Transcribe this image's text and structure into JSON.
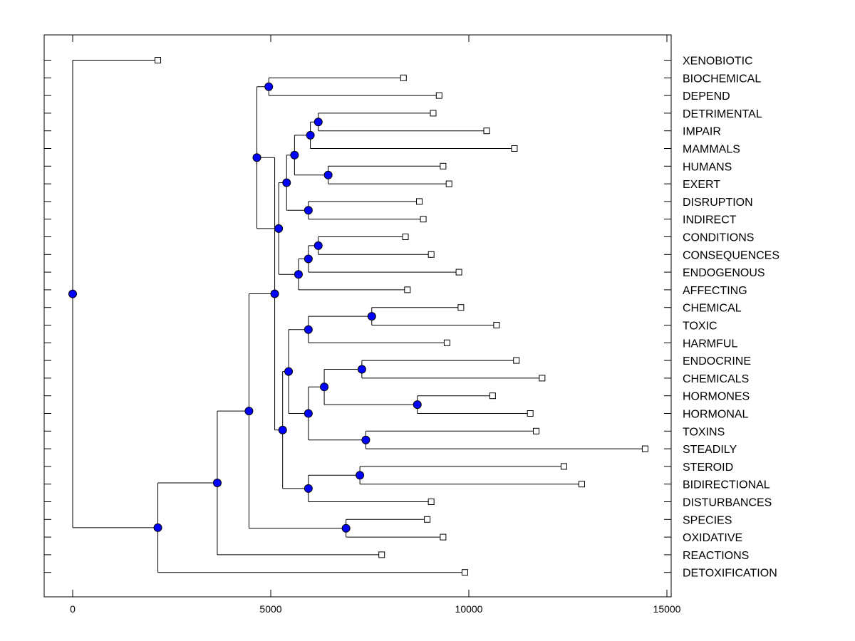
{
  "chart_data": {
    "type": "dendrogram",
    "title": "",
    "xlabel": "",
    "ylabel": "",
    "xlim": [
      -750,
      15100
    ],
    "xticks": [
      0,
      5000,
      10000,
      15000
    ],
    "xtick_labels": [
      "0",
      "5000",
      "10000",
      "15000"
    ],
    "grid": false,
    "colors": {
      "node": "#0000ff",
      "line": "#000000",
      "leaf_fill": "#ffffff"
    },
    "leaves": [
      {
        "label": "XENOBIOTIC",
        "x": 2150
      },
      {
        "label": "BIOCHEMICAL",
        "x": 8350
      },
      {
        "label": "DEPEND",
        "x": 9250
      },
      {
        "label": "DETRIMENTAL",
        "x": 9100
      },
      {
        "label": "IMPAIR",
        "x": 10450
      },
      {
        "label": "MAMMALS",
        "x": 11150
      },
      {
        "label": "HUMANS",
        "x": 9350
      },
      {
        "label": "EXERT",
        "x": 9500
      },
      {
        "label": "DISRUPTION",
        "x": 8750
      },
      {
        "label": "INDIRECT",
        "x": 8850
      },
      {
        "label": "CONDITIONS",
        "x": 8400
      },
      {
        "label": "CONSEQUENCES",
        "x": 9050
      },
      {
        "label": "ENDOGENOUS",
        "x": 9750
      },
      {
        "label": "AFFECTING",
        "x": 8450
      },
      {
        "label": "CHEMICAL",
        "x": 9800
      },
      {
        "label": "TOXIC",
        "x": 10700
      },
      {
        "label": "HARMFUL",
        "x": 9450
      },
      {
        "label": "ENDOCRINE",
        "x": 11200
      },
      {
        "label": "CHEMICALS",
        "x": 11850
      },
      {
        "label": "HORMONES",
        "x": 10600
      },
      {
        "label": "HORMONAL",
        "x": 11550
      },
      {
        "label": "TOXINS",
        "x": 11700
      },
      {
        "label": "STEADILY",
        "x": 14450
      },
      {
        "label": "STEROID",
        "x": 12400
      },
      {
        "label": "BIDIRECTIONAL",
        "x": 12850
      },
      {
        "label": "DISTURBANCES",
        "x": 9050
      },
      {
        "label": "SPECIES",
        "x": 8950
      },
      {
        "label": "OXIDATIVE",
        "x": 9350
      },
      {
        "label": "REACTIONS",
        "x": 7800
      },
      {
        "label": "DETOXIFICATION",
        "x": 9900
      }
    ],
    "merges": [
      {
        "id": "n1",
        "x": 4950,
        "children": [
          "L1",
          "L2"
        ]
      },
      {
        "id": "n2",
        "x": 6200,
        "children": [
          "L3",
          "L4"
        ]
      },
      {
        "id": "n3",
        "x": 6000,
        "children": [
          "n2",
          "L5"
        ]
      },
      {
        "id": "n4",
        "x": 6450,
        "children": [
          "L6",
          "L7"
        ]
      },
      {
        "id": "n5",
        "x": 5600,
        "children": [
          "n3",
          "n4"
        ]
      },
      {
        "id": "n6",
        "x": 5950,
        "children": [
          "L8",
          "L9"
        ]
      },
      {
        "id": "n7",
        "x": 5400,
        "children": [
          "n5",
          "n6"
        ]
      },
      {
        "id": "n8",
        "x": 6200,
        "children": [
          "L10",
          "L11"
        ]
      },
      {
        "id": "n9",
        "x": 5950,
        "children": [
          "n8",
          "L12"
        ]
      },
      {
        "id": "n10",
        "x": 5700,
        "children": [
          "n9",
          "L13"
        ]
      },
      {
        "id": "n11",
        "x": 5200,
        "children": [
          "n7",
          "n10"
        ]
      },
      {
        "id": "n12",
        "x": 4650,
        "children": [
          "n1",
          "n11"
        ]
      },
      {
        "id": "n13",
        "x": 7550,
        "children": [
          "L14",
          "L15"
        ]
      },
      {
        "id": "n14",
        "x": 5950,
        "children": [
          "n13",
          "L16"
        ]
      },
      {
        "id": "n15",
        "x": 7300,
        "children": [
          "L17",
          "L18"
        ]
      },
      {
        "id": "n16",
        "x": 8700,
        "children": [
          "L19",
          "L20"
        ]
      },
      {
        "id": "n17",
        "x": 6350,
        "children": [
          "n15",
          "n16"
        ]
      },
      {
        "id": "n18",
        "x": 7400,
        "children": [
          "L21",
          "L22"
        ]
      },
      {
        "id": "n19",
        "x": 5950,
        "children": [
          "n17",
          "n18"
        ]
      },
      {
        "id": "n20",
        "x": 5450,
        "children": [
          "n14",
          "n19"
        ]
      },
      {
        "id": "n21",
        "x": 7250,
        "children": [
          "L23",
          "L24"
        ]
      },
      {
        "id": "n22",
        "x": 5950,
        "children": [
          "n21",
          "L25"
        ]
      },
      {
        "id": "n23",
        "x": 5300,
        "children": [
          "n20",
          "n22"
        ]
      },
      {
        "id": "n24",
        "x": 5100,
        "children": [
          "n12",
          "n23"
        ]
      },
      {
        "id": "n25",
        "x": 6900,
        "children": [
          "L26",
          "L27"
        ]
      },
      {
        "id": "n26",
        "x": 4450,
        "children": [
          "n24",
          "n25"
        ]
      },
      {
        "id": "n27",
        "x": 3650,
        "children": [
          "n26",
          "L28"
        ]
      },
      {
        "id": "n28",
        "x": 2150,
        "children": [
          "n27",
          "L29"
        ]
      },
      {
        "id": "n29",
        "x": 0,
        "children": [
          "L0",
          "n28"
        ]
      }
    ]
  }
}
